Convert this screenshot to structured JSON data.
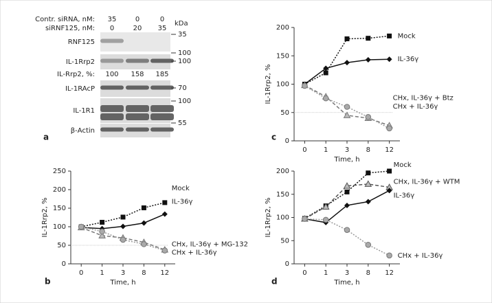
{
  "blot": {
    "panel": "a",
    "unit": "kDa",
    "col_headers": [
      {
        "label": "Contr. siRNA, nM:",
        "values": [
          35,
          0,
          0
        ]
      },
      {
        "label": "siRNF125, nM:",
        "values": [
          0,
          20,
          35
        ]
      }
    ],
    "rows": [
      {
        "label": "RNF125"
      },
      {
        "label": "IL-1Rrp2"
      },
      {
        "label": "IL-1RAcP"
      },
      {
        "label": "IL-1R1"
      },
      {
        "label": "β-Actin"
      }
    ],
    "size_markers": [
      35,
      100,
      100,
      70,
      100,
      55
    ],
    "quant": {
      "label": "IL-Rrp2, %:",
      "values": [
        100,
        158,
        185
      ]
    }
  },
  "chart_data": [
    {
      "type": "line",
      "panel": "b",
      "x_label": "Time, h",
      "y_label": "IL-1Rrp2, %",
      "categories": [
        "0",
        "1",
        "3",
        "8",
        "12"
      ],
      "ylim": [
        0,
        250
      ],
      "yticks": [
        0,
        50,
        100,
        150,
        200,
        250
      ],
      "refline": 50,
      "series": [
        {
          "name": "Mock",
          "color": "#111111",
          "marker": "square",
          "dash": "dotted",
          "values": [
            100,
            112,
            126,
            151,
            165
          ]
        },
        {
          "name": "IL-36γ",
          "color": "#111111",
          "marker": "diamond",
          "dash": "solid",
          "values": [
            98,
            95,
            101,
            110,
            134
          ]
        },
        {
          "name": "CHx, IL-36γ + MG-132",
          "color": "#777777",
          "marker": "triangle",
          "dash": "dashed",
          "values": [
            98,
            76,
            70,
            58,
            38
          ]
        },
        {
          "name": "CHx + IL-36γ",
          "color": "#999999",
          "marker": "circle",
          "dash": "dotted",
          "values": [
            100,
            87,
            65,
            53,
            36
          ]
        }
      ]
    },
    {
      "type": "line",
      "panel": "c",
      "x_label": "Time, h",
      "y_label": "IL-1Rrp2, %",
      "categories": [
        "0",
        "1",
        "3",
        "8",
        "12"
      ],
      "ylim": [
        0,
        200
      ],
      "yticks": [
        0,
        50,
        100,
        150,
        200
      ],
      "refline": 50,
      "series": [
        {
          "name": "Mock",
          "color": "#111111",
          "marker": "square",
          "dash": "dotted",
          "values": [
            100,
            120,
            180,
            181,
            185
          ]
        },
        {
          "name": "IL-36γ",
          "color": "#111111",
          "marker": "diamond",
          "dash": "solid",
          "values": [
            100,
            128,
            138,
            143,
            144
          ]
        },
        {
          "name": "CHx, IL-36γ + Btz",
          "color": "#777777",
          "marker": "triangle",
          "dash": "dashed",
          "values": [
            98,
            78,
            45,
            40,
            27
          ]
        },
        {
          "name": "CHx + IL-36γ",
          "color": "#999999",
          "marker": "circle",
          "dash": "dotted",
          "values": [
            97,
            75,
            60,
            42,
            22
          ]
        }
      ]
    },
    {
      "type": "line",
      "panel": "d",
      "x_label": "Time, h",
      "y_label": "IL-1Rrp2, %",
      "categories": [
        "0",
        "1",
        "3",
        "8",
        "12"
      ],
      "ylim": [
        0,
        200
      ],
      "yticks": [
        0,
        50,
        100,
        150,
        200
      ],
      "series": [
        {
          "name": "Mock",
          "color": "#111111",
          "marker": "square",
          "dash": "dotted",
          "values": [
            98,
            125,
            155,
            196,
            200
          ]
        },
        {
          "name": "CHx, IL-36γ + WTM",
          "color": "#555555",
          "marker": "triangle",
          "dash": "dashed",
          "values": [
            97,
            123,
            168,
            172,
            165
          ]
        },
        {
          "name": "IL-36γ",
          "color": "#111111",
          "marker": "diamond",
          "dash": "solid",
          "values": [
            97,
            89,
            126,
            134,
            158
          ]
        },
        {
          "name": "CHx + IL-36γ",
          "color": "#999999",
          "marker": "circle",
          "dash": "dotted",
          "values": [
            97,
            95,
            73,
            41,
            18
          ]
        }
      ]
    }
  ]
}
